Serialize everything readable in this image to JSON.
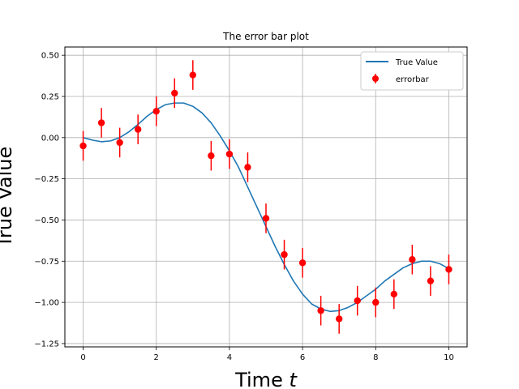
{
  "chart_data": {
    "type": "scatter",
    "title": "The error bar plot",
    "xlabel_main": "Time ",
    "xlabel_var": "t",
    "ylabel": "True Value",
    "xlim": [
      -0.5,
      10.5
    ],
    "ylim": [
      -1.27,
      0.55
    ],
    "xticks": [
      0,
      2,
      4,
      6,
      8,
      10
    ],
    "xtick_labels": [
      "0",
      "2",
      "4",
      "6",
      "8",
      "10"
    ],
    "yticks": [
      0.5,
      0.25,
      0.0,
      -0.25,
      -0.5,
      -0.75,
      -1.0,
      -1.25
    ],
    "ytick_labels": [
      "0.50",
      "0.25",
      "0.00",
      "−0.25",
      "−0.50",
      "−0.75",
      "−1.00",
      "−1.25"
    ],
    "grid": true,
    "legend_position": "top-right",
    "series": [
      {
        "name": "True Value",
        "kind": "line",
        "color": "#1f77b4",
        "x": [
          0,
          0.25,
          0.5,
          0.75,
          1,
          1.25,
          1.5,
          1.75,
          2,
          2.25,
          2.5,
          2.75,
          3,
          3.25,
          3.5,
          3.75,
          4,
          4.25,
          4.5,
          4.75,
          5,
          5.25,
          5.5,
          5.75,
          6,
          6.25,
          6.5,
          6.75,
          7,
          7.25,
          7.5,
          7.75,
          8,
          8.25,
          8.5,
          8.75,
          9,
          9.25,
          9.5,
          9.75,
          10
        ],
        "y": [
          0.0,
          -0.015,
          -0.025,
          -0.02,
          0.0,
          0.035,
          0.08,
          0.13,
          0.17,
          0.2,
          0.21,
          0.21,
          0.19,
          0.15,
          0.09,
          0.01,
          -0.08,
          -0.18,
          -0.3,
          -0.42,
          -0.54,
          -0.66,
          -0.77,
          -0.87,
          -0.95,
          -1.01,
          -1.04,
          -1.055,
          -1.05,
          -1.03,
          -1.0,
          -0.96,
          -0.92,
          -0.87,
          -0.83,
          -0.79,
          -0.765,
          -0.75,
          -0.75,
          -0.765,
          -0.795
        ]
      },
      {
        "name": "errorbar",
        "kind": "errorbar",
        "color": "#ff0000",
        "x": [
          0,
          0.5,
          1,
          1.5,
          2,
          2.5,
          3,
          3.5,
          4,
          4.5,
          5,
          5.5,
          6,
          6.5,
          7,
          7.5,
          8,
          8.5,
          9,
          9.5,
          10
        ],
        "y": [
          -0.05,
          0.09,
          -0.03,
          0.05,
          0.16,
          0.27,
          0.38,
          -0.11,
          -0.1,
          -0.18,
          -0.49,
          -0.71,
          -0.76,
          -1.05,
          -1.1,
          -0.99,
          -1.0,
          -0.95,
          -0.74,
          -0.87,
          -0.8
        ],
        "yerr": 0.09
      }
    ]
  }
}
